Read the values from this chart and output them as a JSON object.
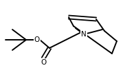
{
  "bg_color": "#ffffff",
  "line_color": "#000000",
  "lw": 1.4,
  "figsize": [
    1.98,
    1.18
  ],
  "dpi": 100,
  "N_label": "N",
  "O_label": "O",
  "fontsize": 7.5
}
